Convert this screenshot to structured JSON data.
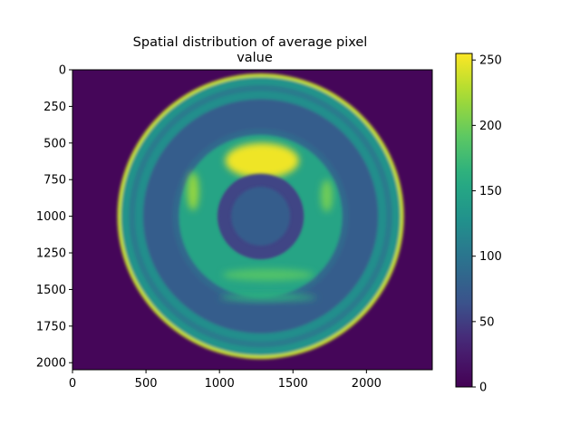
{
  "chart_data": {
    "type": "heatmap",
    "title_lines": [
      "Spatial distribution of average pixel",
      "value"
    ],
    "xlabel": "",
    "ylabel": "",
    "xlim": [
      0,
      2448
    ],
    "ylim": [
      2048,
      0
    ],
    "x_ticks": [
      {
        "value": 0,
        "label": "0"
      },
      {
        "value": 500,
        "label": "500"
      },
      {
        "value": 1000,
        "label": "1000"
      },
      {
        "value": 1500,
        "label": "1500"
      },
      {
        "value": 2000,
        "label": "2000"
      }
    ],
    "y_ticks": [
      {
        "value": 0,
        "label": "0"
      },
      {
        "value": 250,
        "label": "250"
      },
      {
        "value": 500,
        "label": "500"
      },
      {
        "value": 750,
        "label": "750"
      },
      {
        "value": 1000,
        "label": "1000"
      },
      {
        "value": 1250,
        "label": "1250"
      },
      {
        "value": 1500,
        "label": "1500"
      },
      {
        "value": 1750,
        "label": "1750"
      },
      {
        "value": 2000,
        "label": "2000"
      }
    ],
    "colorbar": {
      "colormap": "viridis",
      "vmin": 0,
      "vmax": 255,
      "ticks": [
        {
          "value": 0,
          "label": "0"
        },
        {
          "value": 50,
          "label": "50"
        },
        {
          "value": 100,
          "label": "100"
        },
        {
          "value": 150,
          "label": "150"
        },
        {
          "value": 200,
          "label": "200"
        },
        {
          "value": 250,
          "label": "250"
        }
      ]
    },
    "field": {
      "center": [
        1280,
        1000
      ],
      "background_value": 5,
      "rings": [
        {
          "radius": 975,
          "value": 235
        },
        {
          "radius": 950,
          "value": 130
        },
        {
          "radius": 895,
          "value": 105
        },
        {
          "radius": 855,
          "value": 125
        },
        {
          "radius": 800,
          "value": 75
        },
        {
          "radius": 600,
          "value": 85
        },
        {
          "radius": 555,
          "value": 150
        },
        {
          "radius": 290,
          "value": 55
        },
        {
          "radius": 200,
          "value": 75
        }
      ],
      "bright_regions": [
        {
          "center": [
            1290,
            620
          ],
          "radii": [
            250,
            120
          ],
          "value": 250
        },
        {
          "center": [
            1330,
            1400
          ],
          "radii": [
            310,
            40
          ],
          "value": 185
        },
        {
          "center": [
            1330,
            1555
          ],
          "radii": [
            330,
            22
          ],
          "value": 165
        },
        {
          "center": [
            820,
            830
          ],
          "radii": [
            40,
            130
          ],
          "value": 215
        },
        {
          "center": [
            1730,
            860
          ],
          "radii": [
            40,
            110
          ],
          "value": 200
        }
      ]
    }
  }
}
